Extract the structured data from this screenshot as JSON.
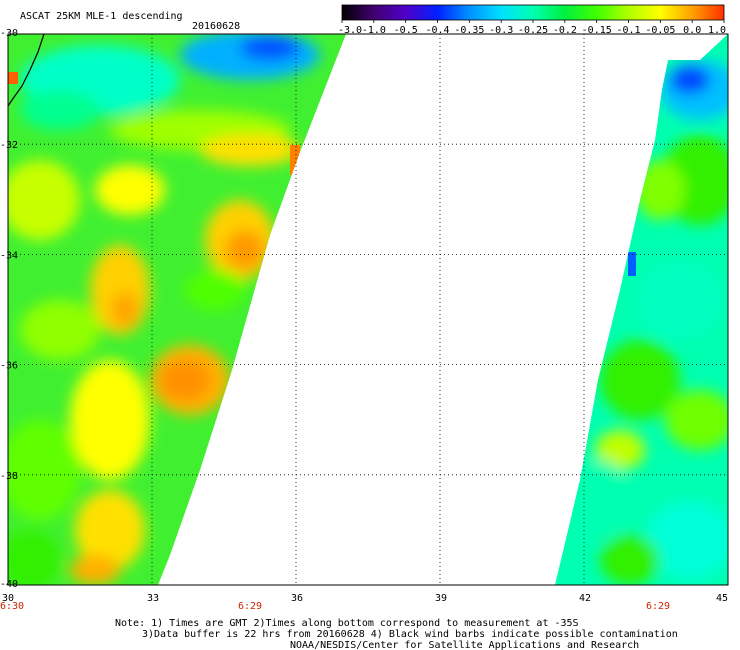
{
  "header": {
    "title": "ASCAT 25KM MLE-1 descending",
    "date": "20160628"
  },
  "colorbar": {
    "ticks": [
      "-3.0",
      "-1.0",
      "-0.5",
      "-0.4",
      "-0.35",
      "-0.3",
      "-0.25",
      "-0.2",
      "-0.15",
      "-0.1",
      "-0.05",
      "0.0",
      "1.0"
    ],
    "colors": [
      "#000000",
      "#400070",
      "#5000c8",
      "#0020ff",
      "#0090ff",
      "#00e0ff",
      "#00ffb0",
      "#00f040",
      "#40ff00",
      "#b0ff00",
      "#ffff00",
      "#ffa000",
      "#ff3000"
    ]
  },
  "map": {
    "lon_min": 30,
    "lon_max": 45,
    "lat_min": -40,
    "lat_max": -30,
    "lat_labels": [
      "-30",
      "-32",
      "-34",
      "-36",
      "-38",
      "-40"
    ],
    "lon_labels": [
      "30",
      "33",
      "36",
      "39",
      "42",
      "45"
    ],
    "time_labels": [
      {
        "lon": 30,
        "text": "6:30"
      },
      {
        "lon": 35,
        "text": "6:29"
      },
      {
        "lon": 43.5,
        "text": "6:29"
      }
    ]
  },
  "notes": {
    "line1": "Note: 1) Times are GMT 2)Times along bottom correspond to measurement at -35S",
    "line2": "3)Data buffer is 22 hrs from 20160628 4) Black wind barbs indicate possible contamination",
    "line3": "NOAA/NESDIS/Center for Satellite Applications and Research"
  }
}
